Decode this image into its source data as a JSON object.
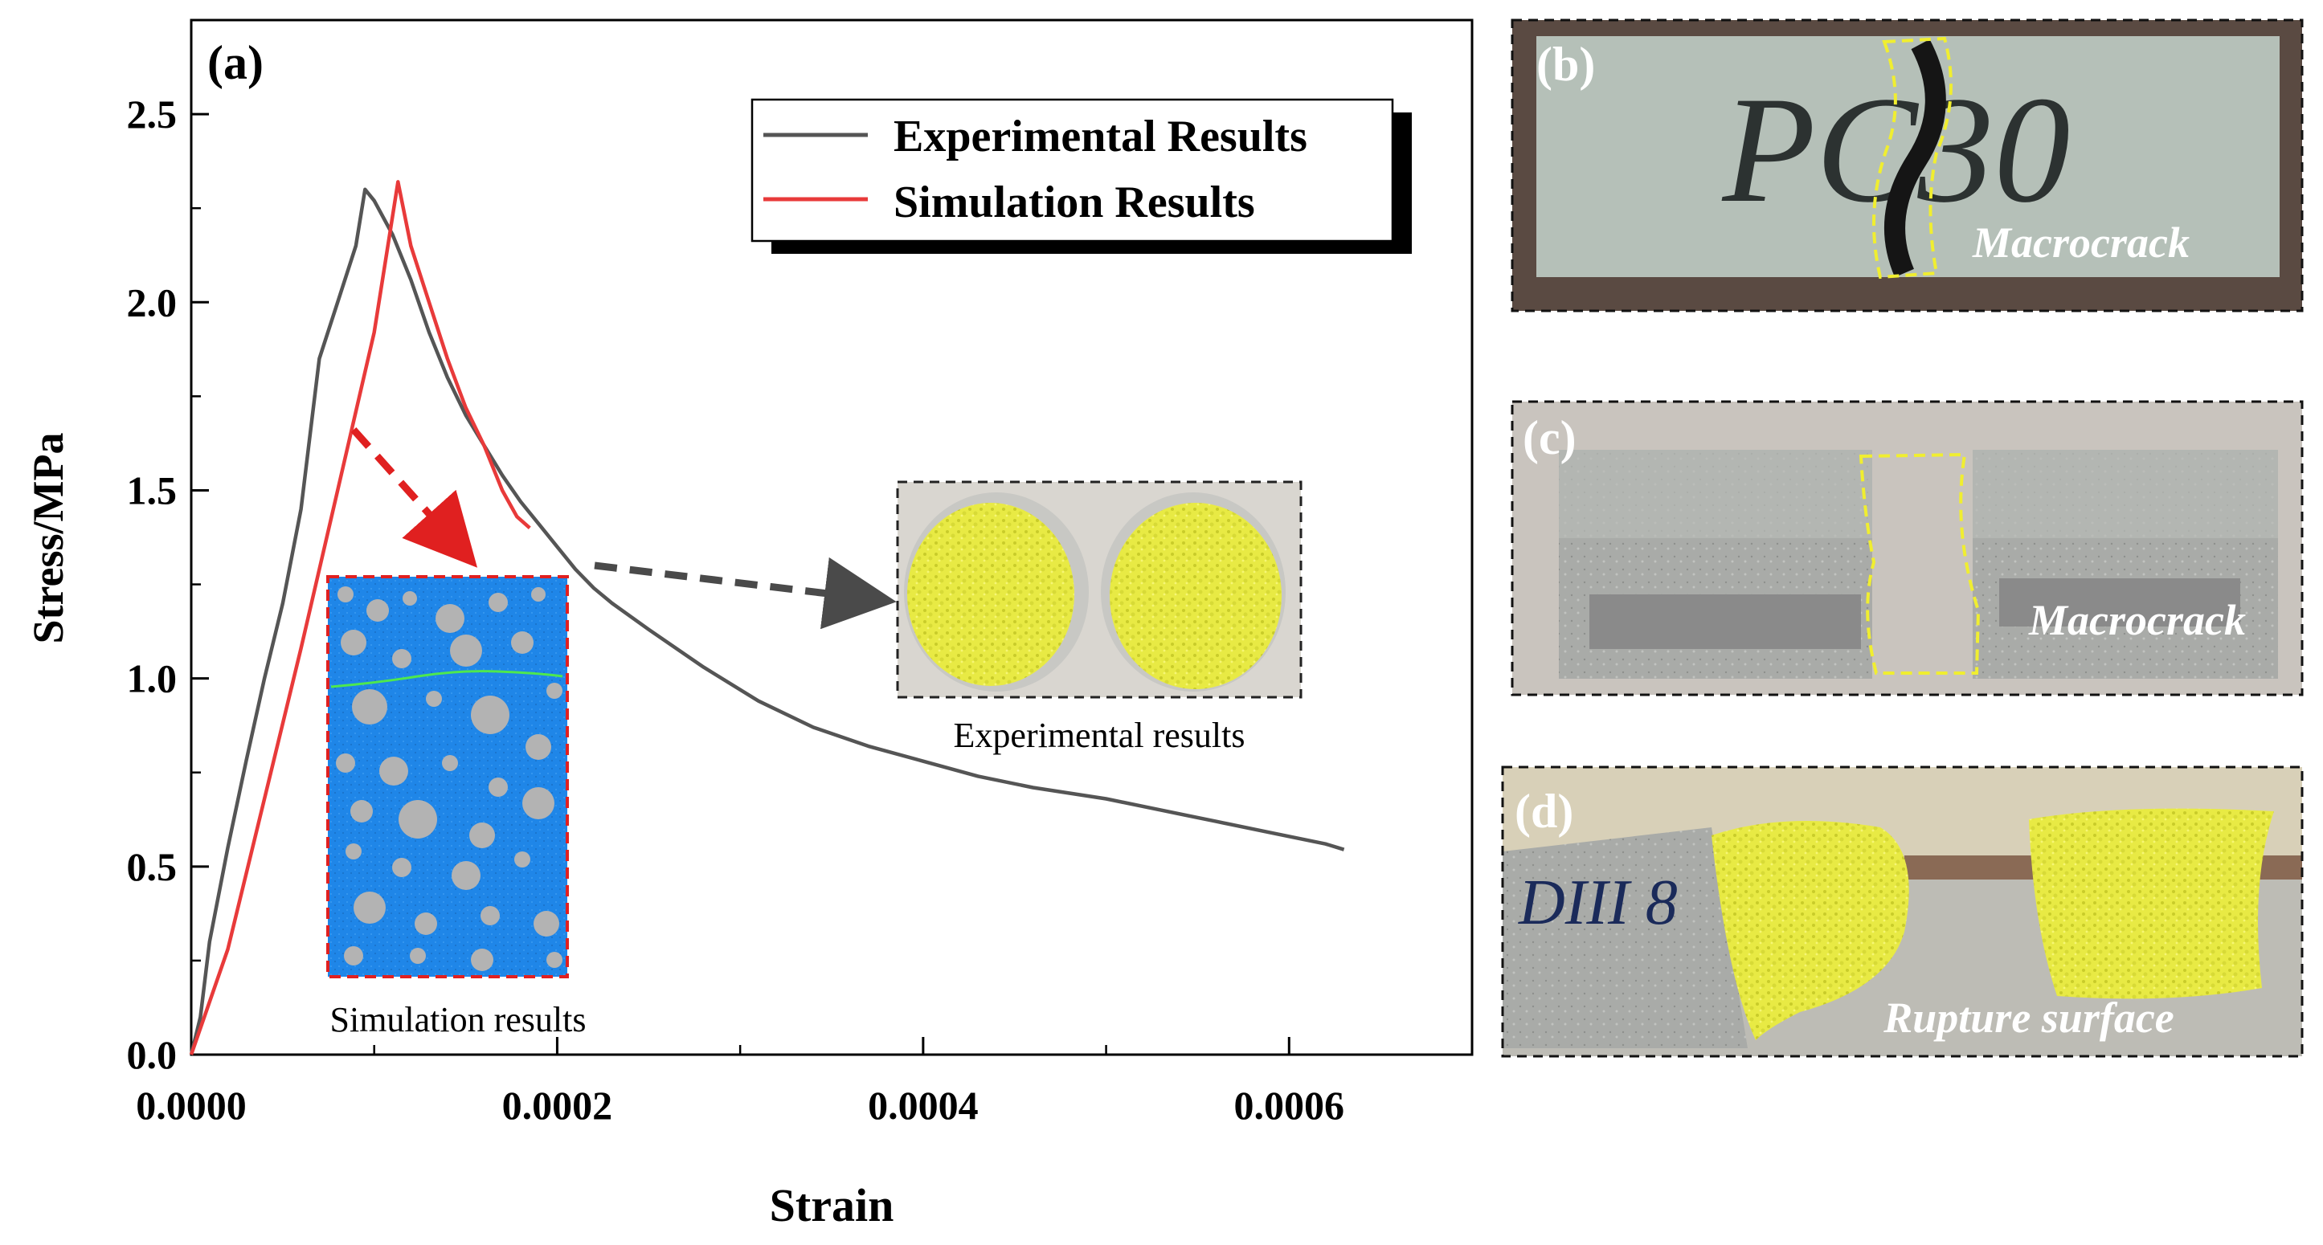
{
  "chart_data": {
    "type": "line",
    "panel_label": "(a)",
    "xlabel": "Strain",
    "ylabel": "Stress/MPa",
    "xlim": [
      0,
      0.0007
    ],
    "ylim": [
      0,
      2.75
    ],
    "x_ticks": [
      0,
      0.0002,
      0.0004,
      0.0006
    ],
    "x_tick_labels": [
      "0.0000",
      "0.0002",
      "0.0004",
      "0.0006"
    ],
    "y_ticks": [
      0,
      0.5,
      1.0,
      1.5,
      2.0,
      2.5
    ],
    "y_tick_labels": [
      "0.0",
      "0.5",
      "1.0",
      "1.5",
      "2.0",
      "2.5"
    ],
    "legend_position": "top-right",
    "series": [
      {
        "name": "Experimental Results",
        "color": "#555555",
        "points": [
          [
            0,
            0
          ],
          [
            5e-06,
            0.1
          ],
          [
            1e-05,
            0.3
          ],
          [
            2e-05,
            0.55
          ],
          [
            3e-05,
            0.78
          ],
          [
            4e-05,
            1.0
          ],
          [
            5e-05,
            1.2
          ],
          [
            6e-05,
            1.45
          ],
          [
            7e-05,
            1.85
          ],
          [
            8e-05,
            2.0
          ],
          [
            9e-05,
            2.15
          ],
          [
            9.5e-05,
            2.3
          ],
          [
            0.0001,
            2.27
          ],
          [
            0.00011,
            2.18
          ],
          [
            0.00012,
            2.06
          ],
          [
            0.00013,
            1.92
          ],
          [
            0.00014,
            1.8
          ],
          [
            0.00015,
            1.7
          ],
          [
            0.00016,
            1.62
          ],
          [
            0.00017,
            1.54
          ],
          [
            0.00018,
            1.47
          ],
          [
            0.00019,
            1.41
          ],
          [
            0.0002,
            1.35
          ],
          [
            0.00021,
            1.29
          ],
          [
            0.00022,
            1.24
          ],
          [
            0.00023,
            1.2
          ],
          [
            0.00025,
            1.13
          ],
          [
            0.00028,
            1.03
          ],
          [
            0.00031,
            0.94
          ],
          [
            0.00034,
            0.87
          ],
          [
            0.00037,
            0.82
          ],
          [
            0.0004,
            0.78
          ],
          [
            0.00043,
            0.74
          ],
          [
            0.00046,
            0.71
          ],
          [
            0.0005,
            0.68
          ],
          [
            0.00053,
            0.65
          ],
          [
            0.00056,
            0.62
          ],
          [
            0.00059,
            0.59
          ],
          [
            0.00062,
            0.56
          ],
          [
            0.00063,
            0.545
          ]
        ]
      },
      {
        "name": "Simulation Results",
        "color": "#e83a3a",
        "points": [
          [
            0,
            0
          ],
          [
            2e-05,
            0.28
          ],
          [
            4e-05,
            0.68
          ],
          [
            6e-05,
            1.08
          ],
          [
            8e-05,
            1.5
          ],
          [
            0.0001,
            1.92
          ],
          [
            0.000113,
            2.32
          ],
          [
            0.00012,
            2.15
          ],
          [
            0.00013,
            2.0
          ],
          [
            0.00014,
            1.85
          ],
          [
            0.00015,
            1.72
          ],
          [
            0.00016,
            1.62
          ],
          [
            0.00017,
            1.5
          ],
          [
            0.000178,
            1.43
          ],
          [
            0.000185,
            1.4
          ]
        ]
      }
    ],
    "insets": {
      "simulation_caption": "Simulation results",
      "experimental_caption": "Experimental results"
    }
  },
  "side_panels": {
    "b": {
      "label": "(b)",
      "annotation": "Macrocrack",
      "marking": "PC30"
    },
    "c": {
      "label": "(c)",
      "annotation": "Macrocrack"
    },
    "d": {
      "label": "(d)",
      "annotation": "Rupture surface",
      "marking": "DIII 8"
    }
  },
  "colors": {
    "highlight_yellow": "#f2f23a",
    "mesoscale_blue": "#1f86e8",
    "aggregate_gray": "#b3b3b3",
    "arrow_red": "#e02020",
    "arrow_gray": "#4a4a4a"
  }
}
